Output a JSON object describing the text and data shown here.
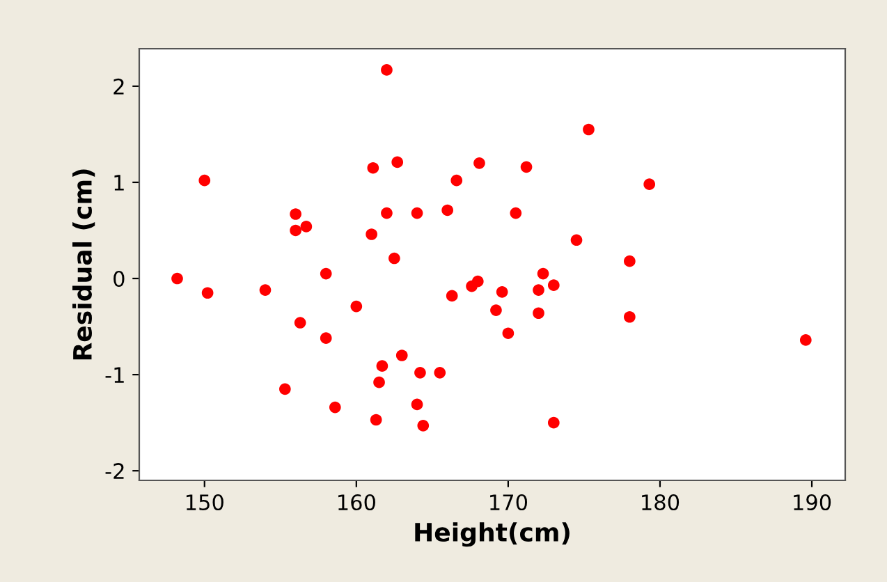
{
  "chart_data": {
    "type": "scatter",
    "xlabel": "Height(cm)",
    "ylabel": "Residual (cm)",
    "x": [
      148.2,
      150,
      150.2,
      154,
      155.3,
      156,
      156,
      156.3,
      156.7,
      158,
      158,
      158.6,
      160,
      161,
      161.1,
      161.3,
      161.5,
      161.7,
      162,
      162,
      162.5,
      162.7,
      163,
      164,
      164,
      164.2,
      164.4,
      165.5,
      166,
      166.3,
      166.6,
      167.6,
      168,
      168.1,
      169.2,
      169.6,
      170,
      170.5,
      171.2,
      172,
      172,
      172.3,
      173,
      173,
      174.5,
      175.3,
      178,
      178,
      179.3,
      189.6
    ],
    "series": [
      {
        "color": "#ff0000",
        "values": [
          0.0,
          1.02,
          -0.15,
          -0.12,
          -1.15,
          0.67,
          0.5,
          -0.46,
          0.54,
          0.05,
          -0.62,
          -1.34,
          -0.29,
          0.46,
          1.15,
          -1.47,
          -1.08,
          -0.91,
          2.17,
          0.68,
          0.21,
          1.21,
          -0.8,
          0.68,
          -1.31,
          -0.98,
          -1.53,
          -0.98,
          0.71,
          -0.18,
          1.02,
          -0.08,
          -0.03,
          1.2,
          -0.33,
          -0.14,
          -0.57,
          0.68,
          1.16,
          -0.12,
          -0.36,
          0.05,
          -0.07,
          -1.5,
          0.4,
          1.55,
          0.18,
          -0.4,
          0.98,
          -0.64
        ]
      }
    ],
    "xlim": [
      145.7,
      192.2
    ],
    "ylim": [
      -2.1,
      2.39
    ],
    "xticks": [
      150,
      160,
      170,
      180,
      190
    ],
    "yticks": [
      2,
      1,
      0,
      -1,
      -2
    ],
    "marker": "circle",
    "grid": false,
    "legend": false
  }
}
